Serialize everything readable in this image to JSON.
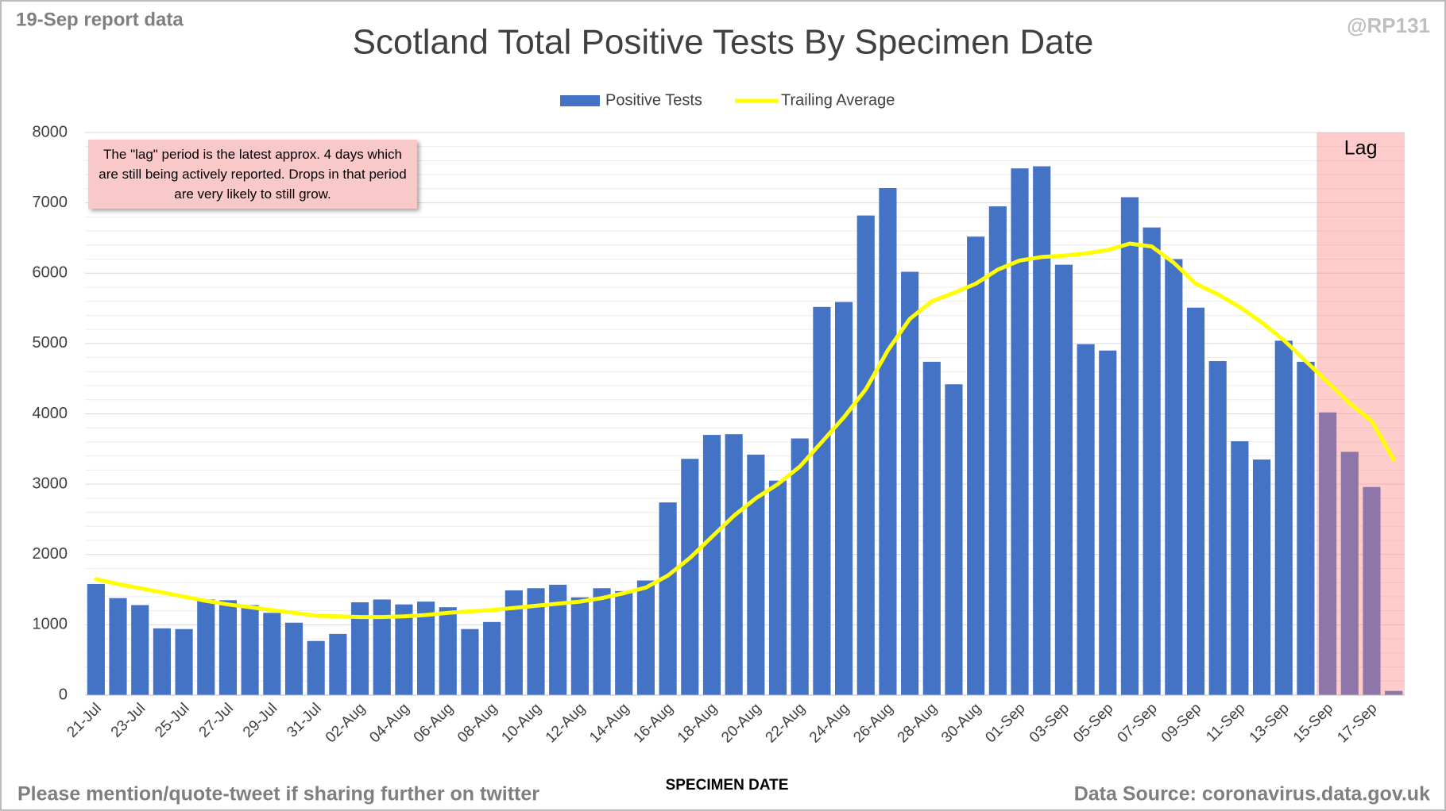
{
  "chart_data": {
    "type": "bar",
    "title": "Scotland Total Positive Tests By Specimen Date",
    "report_note": "19-Sep report data",
    "handle": "@RP131",
    "footer_left": "Please mention/quote-tweet if sharing further on twitter",
    "footer_right": "Data Source: coronavirus.data.gov.uk",
    "x_label": "SPECIMEN DATE",
    "annotation": "The \"lag\" period is the latest approx. 4 days which are still being actively reported.  Drops in that period are very likely to still grow.",
    "lag_label": "Lag",
    "categories": [
      "21-Jul",
      null,
      "23-Jul",
      null,
      "25-Jul",
      null,
      "27-Jul",
      null,
      "29-Jul",
      null,
      "31-Jul",
      null,
      "02-Aug",
      null,
      "04-Aug",
      null,
      "06-Aug",
      null,
      "08-Aug",
      null,
      "10-Aug",
      null,
      "12-Aug",
      null,
      "14-Aug",
      null,
      "16-Aug",
      null,
      "18-Aug",
      null,
      "20-Aug",
      null,
      "22-Aug",
      null,
      "24-Aug",
      null,
      "26-Aug",
      null,
      "28-Aug",
      null,
      "30-Aug",
      null,
      "01-Sep",
      null,
      "03-Sep",
      null,
      "05-Sep",
      null,
      "07-Sep",
      null,
      "09-Sep",
      null,
      "11-Sep",
      null,
      "13-Sep",
      null,
      "15-Sep",
      null,
      "17-Sep",
      null
    ],
    "series": [
      {
        "name": "Positive Tests",
        "color": "#4472c4",
        "values": [
          1580,
          1380,
          1280,
          950,
          940,
          1360,
          1350,
          1280,
          1170,
          1030,
          770,
          870,
          1320,
          1360,
          1290,
          1330,
          1250,
          940,
          1040,
          1490,
          1520,
          1570,
          1390,
          1520,
          1480,
          1630,
          2740,
          3360,
          3700,
          3710,
          3420,
          3050,
          3650,
          5520,
          5590,
          6820,
          7210,
          6020,
          4740,
          4420,
          6520,
          6950,
          7490,
          7520,
          6120,
          4990,
          4900,
          7080,
          6650,
          6200,
          5510,
          4750,
          3610,
          3350,
          5040,
          4740,
          4020,
          3460,
          2960,
          60
        ]
      },
      {
        "name": "Trailing Average",
        "color": "#ffff00",
        "type": "line",
        "values": [
          1650,
          1580,
          1520,
          1460,
          1400,
          1340,
          1290,
          1250,
          1210,
          1170,
          1130,
          1120,
          1110,
          1110,
          1120,
          1140,
          1170,
          1190,
          1210,
          1240,
          1270,
          1300,
          1330,
          1380,
          1450,
          1530,
          1700,
          1950,
          2250,
          2550,
          2800,
          3000,
          3250,
          3600,
          3950,
          4350,
          4900,
          5350,
          5600,
          5720,
          5850,
          6050,
          6180,
          6230,
          6250,
          6280,
          6330,
          6420,
          6380,
          6150,
          5850,
          5700,
          5520,
          5300,
          5050,
          4750,
          4450,
          4150,
          3900,
          3350
        ]
      }
    ],
    "ylim": [
      0,
      8000
    ],
    "yticks": [
      0,
      1000,
      2000,
      3000,
      4000,
      5000,
      6000,
      7000,
      8000
    ],
    "grid": true
  }
}
